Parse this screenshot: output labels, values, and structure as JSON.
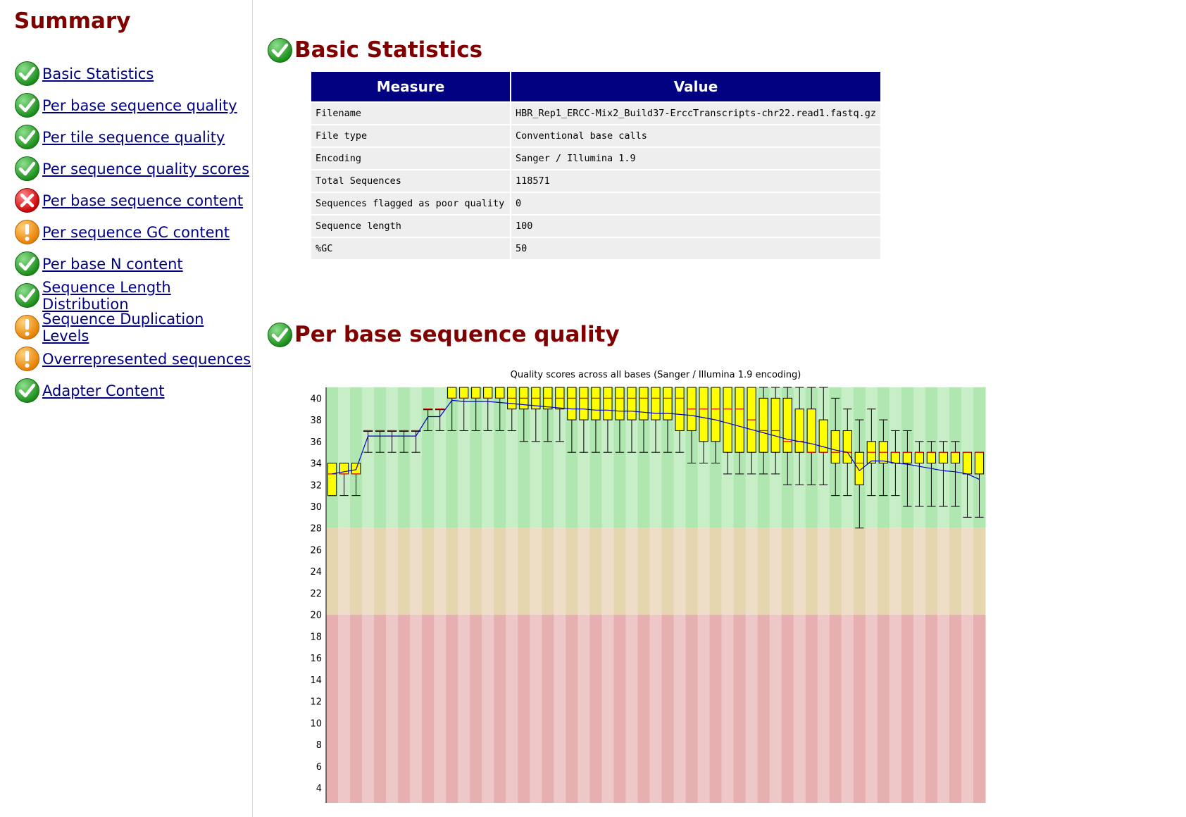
{
  "summary": {
    "title": "Summary",
    "items": [
      {
        "label": "Basic Statistics",
        "status": "pass"
      },
      {
        "label": "Per base sequence quality",
        "status": "pass"
      },
      {
        "label": "Per tile sequence quality",
        "status": "pass"
      },
      {
        "label": "Per sequence quality scores",
        "status": "pass"
      },
      {
        "label": "Per base sequence content",
        "status": "fail"
      },
      {
        "label": "Per sequence GC content",
        "status": "warn"
      },
      {
        "label": "Per base N content",
        "status": "pass"
      },
      {
        "label": "Sequence Length Distribution",
        "status": "pass"
      },
      {
        "label": "Sequence Duplication Levels",
        "status": "warn"
      },
      {
        "label": "Overrepresented sequences",
        "status": "warn"
      },
      {
        "label": "Adapter Content",
        "status": "pass"
      }
    ]
  },
  "basic_stats": {
    "title": "Basic Statistics",
    "headers": {
      "measure": "Measure",
      "value": "Value"
    },
    "rows": [
      {
        "measure": "Filename",
        "value": "HBR_Rep1_ERCC-Mix2_Build37-ErccTranscripts-chr22.read1.fastq.gz"
      },
      {
        "measure": "File type",
        "value": "Conventional base calls"
      },
      {
        "measure": "Encoding",
        "value": "Sanger / Illumina 1.9"
      },
      {
        "measure": "Total Sequences",
        "value": "118571"
      },
      {
        "measure": "Sequences flagged as poor quality",
        "value": "0"
      },
      {
        "measure": "Sequence length",
        "value": "100"
      },
      {
        "measure": "%GC",
        "value": "50"
      }
    ]
  },
  "per_base_quality": {
    "title": "Per base sequence quality"
  },
  "colors": {
    "pass": "#22a022",
    "warn": "#f0900a",
    "fail": "#dd1111",
    "heading": "#800000",
    "link": "#000080"
  },
  "chart_data": {
    "type": "boxplot",
    "title": "Quality scores across all bases (Sanger / Illumina 1.9 encoding)",
    "ylim": [
      0,
      41
    ],
    "yticks": [
      "4",
      "6",
      "8",
      "10",
      "12",
      "14",
      "16",
      "18",
      "20",
      "22",
      "24",
      "26",
      "28",
      "30",
      "32",
      "34",
      "36",
      "38",
      "40"
    ],
    "bands": [
      {
        "from": 28,
        "to": 41,
        "color": "green"
      },
      {
        "from": 20,
        "to": 28,
        "color": "orange"
      },
      {
        "from": 0,
        "to": 20,
        "color": "red"
      }
    ],
    "grid": false,
    "columns": 55,
    "boxes": [
      {
        "q1": 31,
        "q3": 34,
        "median": 33,
        "wl": 31,
        "wh": 34,
        "mean": 33
      },
      {
        "q1": 33,
        "q3": 34,
        "median": 33,
        "wl": 31,
        "wh": 34,
        "mean": 33.2
      },
      {
        "q1": 33,
        "q3": 34,
        "median": 33,
        "wl": 31,
        "wh": 34,
        "mean": 33.4
      },
      {
        "q1": 37,
        "q3": 37,
        "median": 37,
        "wl": 35,
        "wh": 37,
        "mean": 36.5
      },
      {
        "q1": 37,
        "q3": 37,
        "median": 37,
        "wl": 35,
        "wh": 37,
        "mean": 36.5
      },
      {
        "q1": 37,
        "q3": 37,
        "median": 37,
        "wl": 35,
        "wh": 37,
        "mean": 36.5
      },
      {
        "q1": 37,
        "q3": 37,
        "median": 37,
        "wl": 35,
        "wh": 37,
        "mean": 36.5
      },
      {
        "q1": 37,
        "q3": 37,
        "median": 37,
        "wl": 35,
        "wh": 37,
        "mean": 36.5
      },
      {
        "q1": 39,
        "q3": 39,
        "median": 39,
        "wl": 37,
        "wh": 39,
        "mean": 38.3
      },
      {
        "q1": 39,
        "q3": 39,
        "median": 39,
        "wl": 37,
        "wh": 39,
        "mean": 38.3
      },
      {
        "q1": 40,
        "q3": 41,
        "median": 40,
        "wl": 37,
        "wh": 41,
        "mean": 39.8
      },
      {
        "q1": 40,
        "q3": 41,
        "median": 40,
        "wl": 37,
        "wh": 41,
        "mean": 39.7
      },
      {
        "q1": 40,
        "q3": 41,
        "median": 40,
        "wl": 37,
        "wh": 41,
        "mean": 39.7
      },
      {
        "q1": 40,
        "q3": 41,
        "median": 40,
        "wl": 37,
        "wh": 41,
        "mean": 39.7
      },
      {
        "q1": 40,
        "q3": 41,
        "median": 40,
        "wl": 37,
        "wh": 41,
        "mean": 39.6
      },
      {
        "q1": 39,
        "q3": 41,
        "median": 40,
        "wl": 37,
        "wh": 41,
        "mean": 39.5
      },
      {
        "q1": 39,
        "q3": 41,
        "median": 40,
        "wl": 36,
        "wh": 41,
        "mean": 39.4
      },
      {
        "q1": 39,
        "q3": 41,
        "median": 40,
        "wl": 36,
        "wh": 41,
        "mean": 39.3
      },
      {
        "q1": 39,
        "q3": 41,
        "median": 40,
        "wl": 36,
        "wh": 41,
        "mean": 39.2
      },
      {
        "q1": 39,
        "q3": 41,
        "median": 40,
        "wl": 36,
        "wh": 41,
        "mean": 39.1
      },
      {
        "q1": 38,
        "q3": 41,
        "median": 40,
        "wl": 35,
        "wh": 41,
        "mean": 39
      },
      {
        "q1": 38,
        "q3": 41,
        "median": 40,
        "wl": 35,
        "wh": 41,
        "mean": 39
      },
      {
        "q1": 38,
        "q3": 41,
        "median": 40,
        "wl": 35,
        "wh": 41,
        "mean": 38.9
      },
      {
        "q1": 38,
        "q3": 41,
        "median": 40,
        "wl": 35,
        "wh": 41,
        "mean": 38.9
      },
      {
        "q1": 38,
        "q3": 41,
        "median": 40,
        "wl": 35,
        "wh": 41,
        "mean": 38.8
      },
      {
        "q1": 38,
        "q3": 41,
        "median": 40,
        "wl": 35,
        "wh": 41,
        "mean": 38.8
      },
      {
        "q1": 38,
        "q3": 41,
        "median": 40,
        "wl": 35,
        "wh": 41,
        "mean": 38.7
      },
      {
        "q1": 38,
        "q3": 41,
        "median": 40,
        "wl": 35,
        "wh": 41,
        "mean": 38.6
      },
      {
        "q1": 38,
        "q3": 41,
        "median": 40,
        "wl": 35,
        "wh": 41,
        "mean": 38.6
      },
      {
        "q1": 37,
        "q3": 41,
        "median": 40,
        "wl": 35,
        "wh": 41,
        "mean": 38.5
      },
      {
        "q1": 37,
        "q3": 41,
        "median": 39,
        "wl": 34,
        "wh": 41,
        "mean": 38.4
      },
      {
        "q1": 36,
        "q3": 41,
        "median": 39,
        "wl": 34,
        "wh": 41,
        "mean": 38.2
      },
      {
        "q1": 36,
        "q3": 41,
        "median": 39,
        "wl": 34,
        "wh": 41,
        "mean": 38
      },
      {
        "q1": 35,
        "q3": 41,
        "median": 39,
        "wl": 33,
        "wh": 41,
        "mean": 37.7
      },
      {
        "q1": 35,
        "q3": 41,
        "median": 39,
        "wl": 33,
        "wh": 41,
        "mean": 37.4
      },
      {
        "q1": 35,
        "q3": 41,
        "median": 38,
        "wl": 33,
        "wh": 41,
        "mean": 37.1
      },
      {
        "q1": 35,
        "q3": 40,
        "median": 37,
        "wl": 33,
        "wh": 41,
        "mean": 36.8
      },
      {
        "q1": 35,
        "q3": 40,
        "median": 37,
        "wl": 33,
        "wh": 41,
        "mean": 36.5
      },
      {
        "q1": 35,
        "q3": 40,
        "median": 36,
        "wl": 32,
        "wh": 41,
        "mean": 36.2
      },
      {
        "q1": 35,
        "q3": 39,
        "median": 36,
        "wl": 32,
        "wh": 41,
        "mean": 36
      },
      {
        "q1": 35,
        "q3": 39,
        "median": 35,
        "wl": 32,
        "wh": 41,
        "mean": 35.8
      },
      {
        "q1": 35,
        "q3": 38,
        "median": 35,
        "wl": 32,
        "wh": 41,
        "mean": 35.5
      },
      {
        "q1": 34,
        "q3": 37,
        "median": 35,
        "wl": 31,
        "wh": 40,
        "mean": 35.2
      },
      {
        "q1": 34,
        "q3": 37,
        "median": 35,
        "wl": 31,
        "wh": 39,
        "mean": 35
      },
      {
        "q1": 32,
        "q3": 35,
        "median": 34,
        "wl": 28,
        "wh": 38,
        "mean": 33.3
      },
      {
        "q1": 34,
        "q3": 36,
        "median": 35,
        "wl": 31,
        "wh": 39,
        "mean": 34.2
      },
      {
        "q1": 34,
        "q3": 36,
        "median": 35,
        "wl": 31,
        "wh": 38,
        "mean": 34.2
      },
      {
        "q1": 34,
        "q3": 35,
        "median": 35,
        "wl": 31,
        "wh": 37,
        "mean": 34
      },
      {
        "q1": 34,
        "q3": 35,
        "median": 35,
        "wl": 30,
        "wh": 37,
        "mean": 33.9
      },
      {
        "q1": 34,
        "q3": 35,
        "median": 35,
        "wl": 30,
        "wh": 36,
        "mean": 33.7
      },
      {
        "q1": 34,
        "q3": 35,
        "median": 35,
        "wl": 30,
        "wh": 36,
        "mean": 33.5
      },
      {
        "q1": 34,
        "q3": 35,
        "median": 35,
        "wl": 30,
        "wh": 36,
        "mean": 33.3
      },
      {
        "q1": 34,
        "q3": 35,
        "median": 35,
        "wl": 30,
        "wh": 36,
        "mean": 33.2
      },
      {
        "q1": 33,
        "q3": 35,
        "median": 35,
        "wl": 29,
        "wh": 35,
        "mean": 33
      },
      {
        "q1": 33,
        "q3": 35,
        "median": 35,
        "wl": 29,
        "wh": 35,
        "mean": 32.5
      }
    ]
  }
}
